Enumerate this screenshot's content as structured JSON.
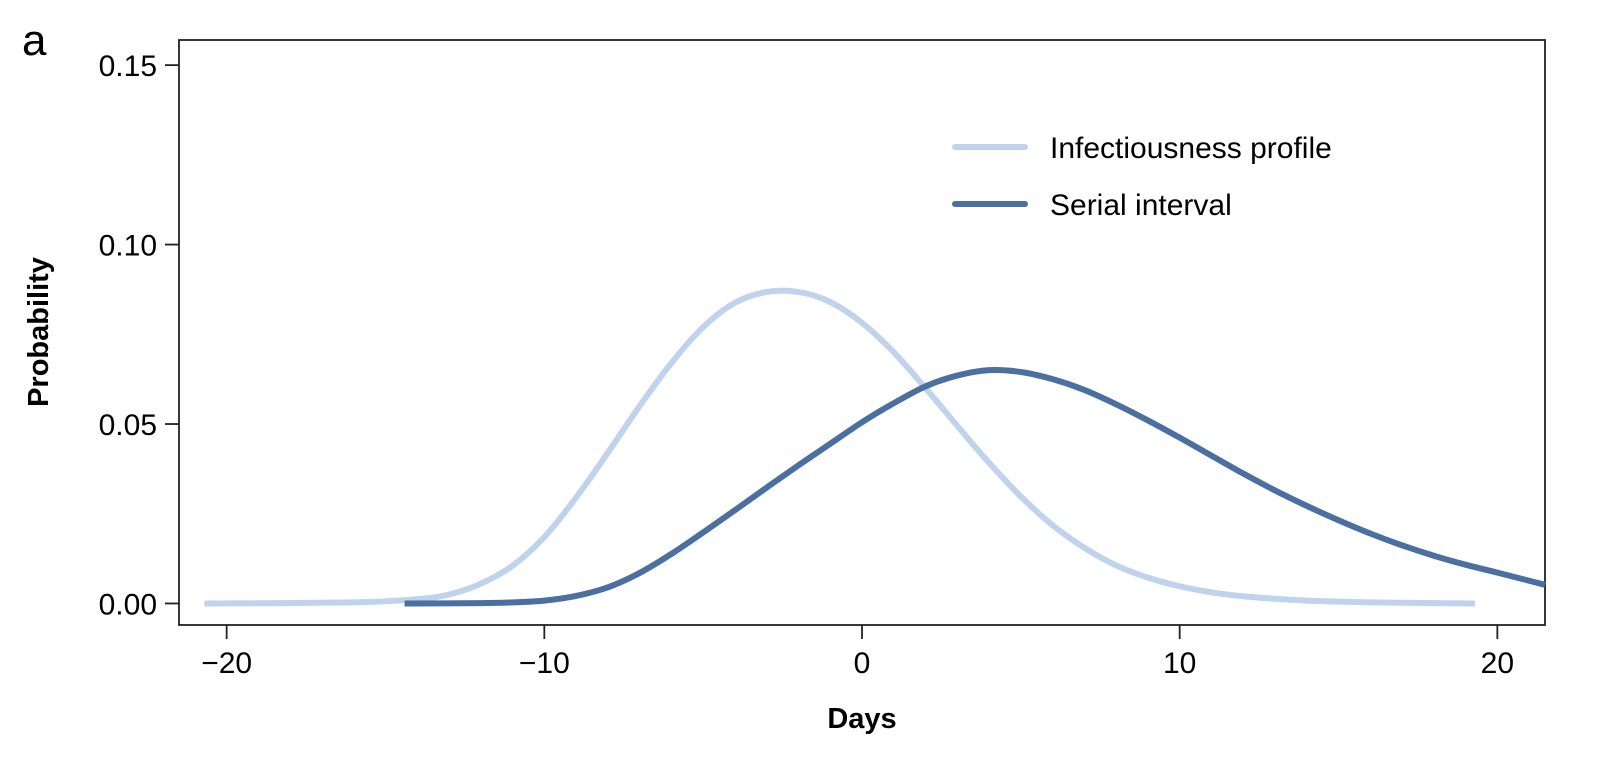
{
  "panel_label": "a",
  "chart_data": {
    "type": "line",
    "xlabel": "Days",
    "ylabel": "Probability",
    "xlim": [
      -21.5,
      21.5
    ],
    "ylim": [
      -0.006,
      0.157
    ],
    "x_ticks": [
      -20,
      -10,
      0,
      10,
      20
    ],
    "x_tick_labels": [
      "−20",
      "−10",
      "0",
      "10",
      "20"
    ],
    "y_ticks": [
      0.0,
      0.05,
      0.1,
      0.15
    ],
    "y_tick_labels": [
      "0.00",
      "0.05",
      "0.10",
      "0.15"
    ],
    "grid": false,
    "legend_position": "top-right",
    "series": [
      {
        "name": "Infectiousness profile",
        "color": "#bfd4ec",
        "x": [
          -20.7,
          -16,
          -14,
          -13,
          -12,
          -11,
          -10,
          -9,
          -8,
          -7,
          -6,
          -5,
          -4,
          -3,
          -2,
          -1,
          0,
          1,
          2,
          3,
          4,
          5,
          6,
          7,
          8,
          9,
          10,
          11,
          12,
          13,
          14,
          15,
          16,
          17,
          18,
          19.3
        ],
        "y": [
          0.0,
          0.0003,
          0.0012,
          0.0025,
          0.0055,
          0.0105,
          0.0185,
          0.0295,
          0.042,
          0.055,
          0.067,
          0.077,
          0.0838,
          0.0868,
          0.0868,
          0.084,
          0.0782,
          0.07,
          0.06,
          0.0495,
          0.0392,
          0.0298,
          0.0218,
          0.0155,
          0.0106,
          0.0072,
          0.0048,
          0.0031,
          0.002,
          0.0013,
          0.0008,
          0.0005,
          0.0003,
          0.0002,
          0.0001,
          0.0
        ]
      },
      {
        "name": "Serial interval",
        "color": "#4a6fa0",
        "x": [
          -14.4,
          -12,
          -11,
          -10,
          -9,
          -8,
          -7,
          -6,
          -5,
          -4,
          -3,
          -2,
          -1,
          0,
          1,
          2,
          3,
          4,
          5,
          6,
          7,
          8,
          9,
          10,
          11,
          12,
          13,
          14,
          15,
          16,
          17,
          18,
          19,
          20,
          21.5
        ],
        "y": [
          0.0,
          0.0001,
          0.0003,
          0.0008,
          0.0021,
          0.0045,
          0.0085,
          0.0138,
          0.0198,
          0.026,
          0.0323,
          0.0385,
          0.0445,
          0.0505,
          0.0558,
          0.0605,
          0.0635,
          0.065,
          0.0645,
          0.0625,
          0.0595,
          0.0555,
          0.051,
          0.0462,
          0.0412,
          0.0362,
          0.0315,
          0.0272,
          0.0232,
          0.0195,
          0.0162,
          0.0133,
          0.0108,
          0.0086,
          0.0052
        ]
      }
    ]
  }
}
